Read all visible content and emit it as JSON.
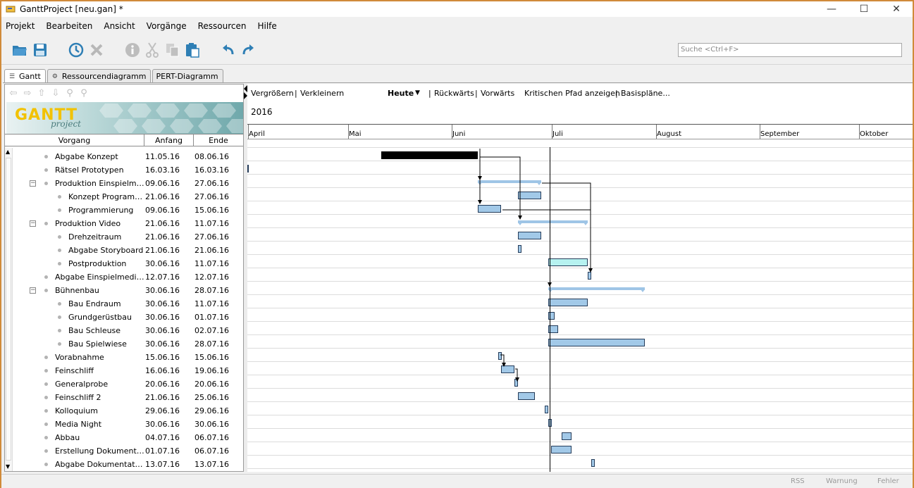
{
  "window": {
    "title": "GanttProject [neu.gan] *",
    "minimize_glyph": "—",
    "maximize_glyph": "☐",
    "close_glyph": "✕"
  },
  "menu": [
    "Projekt",
    "Bearbeiten",
    "Ansicht",
    "Vorgänge",
    "Ressourcen",
    "Hilfe"
  ],
  "toolbar": {
    "icons": [
      "open-folder-icon",
      "save-icon",
      "clock-icon",
      "delete-icon",
      "info-icon",
      "cut-icon",
      "copy-icon",
      "paste-icon",
      "undo-icon",
      "redo-icon"
    ],
    "search_placeholder": "Suche <Ctrl+F>"
  },
  "tabs": [
    {
      "label": "Gantt",
      "active": true
    },
    {
      "label": "Ressourcendiagramm",
      "active": false
    },
    {
      "label": "PERT-Diagramm",
      "active": false
    }
  ],
  "logo": {
    "main": "GANTT",
    "sub": "project"
  },
  "table": {
    "headers": [
      "Vorgang",
      "Anfang",
      "Ende"
    ],
    "rows": [
      {
        "name": "Abgabe Konzept",
        "start": "11.05.16",
        "end": "08.06.16",
        "level": 0,
        "group": false
      },
      {
        "name": "Rätsel Prototypen",
        "start": "16.03.16",
        "end": "16.03.16",
        "level": 0,
        "group": false
      },
      {
        "name": "Produktion Einspielme...",
        "start": "09.06.16",
        "end": "27.06.16",
        "level": 0,
        "group": true
      },
      {
        "name": "Konzept Programm...",
        "start": "21.06.16",
        "end": "27.06.16",
        "level": 1,
        "group": false
      },
      {
        "name": "Programmierung",
        "start": "09.06.16",
        "end": "15.06.16",
        "level": 1,
        "group": false
      },
      {
        "name": "Produktion Video",
        "start": "21.06.16",
        "end": "11.07.16",
        "level": 0,
        "group": true
      },
      {
        "name": "Drehzeitraum",
        "start": "21.06.16",
        "end": "27.06.16",
        "level": 1,
        "group": false
      },
      {
        "name": "Abgabe Storyboard",
        "start": "21.06.16",
        "end": "21.06.16",
        "level": 1,
        "group": false
      },
      {
        "name": "Postproduktion",
        "start": "30.06.16",
        "end": "11.07.16",
        "level": 1,
        "group": false
      },
      {
        "name": "Abgabe Einspielmedien",
        "start": "12.07.16",
        "end": "12.07.16",
        "level": 0,
        "group": false
      },
      {
        "name": "Bühnenbau",
        "start": "30.06.16",
        "end": "28.07.16",
        "level": 0,
        "group": true
      },
      {
        "name": "Bau Endraum",
        "start": "30.06.16",
        "end": "11.07.16",
        "level": 1,
        "group": false
      },
      {
        "name": "Grundgerüstbau",
        "start": "30.06.16",
        "end": "01.07.16",
        "level": 1,
        "group": false
      },
      {
        "name": "Bau Schleuse",
        "start": "30.06.16",
        "end": "02.07.16",
        "level": 1,
        "group": false
      },
      {
        "name": "Bau Spielwiese",
        "start": "30.06.16",
        "end": "28.07.16",
        "level": 1,
        "group": false
      },
      {
        "name": "Vorabnahme",
        "start": "15.06.16",
        "end": "15.06.16",
        "level": 0,
        "group": false
      },
      {
        "name": "Feinschliff",
        "start": "16.06.16",
        "end": "19.06.16",
        "level": 0,
        "group": false
      },
      {
        "name": "Generalprobe",
        "start": "20.06.16",
        "end": "20.06.16",
        "level": 0,
        "group": false
      },
      {
        "name": "Feinschliff 2",
        "start": "21.06.16",
        "end": "25.06.16",
        "level": 0,
        "group": false
      },
      {
        "name": "Kolloquium",
        "start": "29.06.16",
        "end": "29.06.16",
        "level": 0,
        "group": false
      },
      {
        "name": "Media Night",
        "start": "30.06.16",
        "end": "30.06.16",
        "level": 0,
        "group": false
      },
      {
        "name": "Abbau",
        "start": "04.07.16",
        "end": "06.07.16",
        "level": 0,
        "group": false
      },
      {
        "name": "Erstellung Dokumentati...",
        "start": "01.07.16",
        "end": "06.07.16",
        "level": 0,
        "group": false
      },
      {
        "name": "Abgabe Dokumentation",
        "start": "13.07.16",
        "end": "13.07.16",
        "level": 0,
        "group": false
      }
    ]
  },
  "chart_toolbar": {
    "zoom_in": "Vergrößern",
    "zoom_out": "Verkleinern",
    "today": "Heute",
    "back": "Rückwärts",
    "forward": "Vorwärts",
    "critical_path": "Kritischen Pfad anzeigen",
    "baselines": "Basispläne...",
    "separator": "|",
    "dropdown_glyph": "▼"
  },
  "timeline": {
    "year": "2016",
    "months": [
      "April",
      "Mai",
      "Juni",
      "Juli",
      "August",
      "September",
      "Oktober"
    ]
  },
  "status": {
    "rss": "RSS",
    "warning": "Warnung",
    "error": "Fehler"
  }
}
